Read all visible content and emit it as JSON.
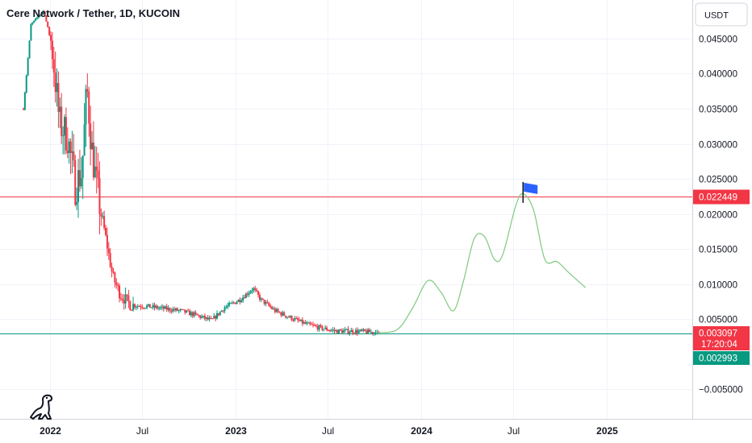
{
  "chart_data": {
    "type": "candlestick",
    "title": "Cere Network / Tether, 1D, KUCOIN",
    "currency_button": "USDT",
    "y_axis": {
      "ticks": [
        {
          "value": 0.045,
          "label": "0.045000"
        },
        {
          "value": 0.04,
          "label": "0.040000"
        },
        {
          "value": 0.035,
          "label": "0.035000"
        },
        {
          "value": 0.03,
          "label": "0.030000"
        },
        {
          "value": 0.025,
          "label": "0.025000"
        },
        {
          "value": 0.02,
          "label": "0.020000"
        },
        {
          "value": 0.015,
          "label": "0.015000"
        },
        {
          "value": 0.01,
          "label": "0.010000"
        },
        {
          "value": 0.005,
          "label": "0.005000"
        },
        {
          "value": -0.005,
          "label": "−0.005000"
        }
      ],
      "range": [
        -0.0092,
        0.0505
      ]
    },
    "x_axis": {
      "ticks": [
        {
          "date": "2022-01-01",
          "label": "2022",
          "bold": true
        },
        {
          "date": "2022-07-01",
          "label": "Jul",
          "bold": false
        },
        {
          "date": "2023-01-01",
          "label": "2023",
          "bold": true
        },
        {
          "date": "2023-07-01",
          "label": "Jul",
          "bold": false
        },
        {
          "date": "2024-01-01",
          "label": "2024",
          "bold": true
        },
        {
          "date": "2024-07-01",
          "label": "Jul",
          "bold": false
        },
        {
          "date": "2025-01-01",
          "label": "2025",
          "bold": true
        }
      ],
      "range": [
        "2021-09-25",
        "2025-06-18"
      ]
    },
    "price_path": [
      {
        "date": "2021-11-10",
        "value": 0.035
      },
      {
        "date": "2021-11-25",
        "value": 0.047
      },
      {
        "date": "2021-12-20",
        "value": 0.049
      },
      {
        "date": "2022-01-05",
        "value": 0.044
      },
      {
        "date": "2022-01-20",
        "value": 0.033
      },
      {
        "date": "2022-02-05",
        "value": 0.031
      },
      {
        "date": "2022-02-20",
        "value": 0.024
      },
      {
        "date": "2022-03-05",
        "value": 0.026
      },
      {
        "date": "2022-03-15",
        "value": 0.038
      },
      {
        "date": "2022-03-25",
        "value": 0.029
      },
      {
        "date": "2022-04-05",
        "value": 0.023
      },
      {
        "date": "2022-04-20",
        "value": 0.017
      },
      {
        "date": "2022-05-05",
        "value": 0.011
      },
      {
        "date": "2022-05-20",
        "value": 0.0085
      },
      {
        "date": "2022-06-10",
        "value": 0.007
      },
      {
        "date": "2022-07-15",
        "value": 0.0068
      },
      {
        "date": "2022-08-15",
        "value": 0.0065
      },
      {
        "date": "2022-09-15",
        "value": 0.0062
      },
      {
        "date": "2022-10-15",
        "value": 0.0056
      },
      {
        "date": "2022-11-15",
        "value": 0.0048
      },
      {
        "date": "2022-12-10",
        "value": 0.0066
      },
      {
        "date": "2023-01-10",
        "value": 0.0078
      },
      {
        "date": "2023-02-05",
        "value": 0.0094
      },
      {
        "date": "2023-02-20",
        "value": 0.0078
      },
      {
        "date": "2023-03-20",
        "value": 0.0062
      },
      {
        "date": "2023-04-20",
        "value": 0.0052
      },
      {
        "date": "2023-05-20",
        "value": 0.0043
      },
      {
        "date": "2023-06-20",
        "value": 0.0037
      },
      {
        "date": "2023-07-20",
        "value": 0.0033
      },
      {
        "date": "2023-08-20",
        "value": 0.0033
      },
      {
        "date": "2023-09-15",
        "value": 0.0032
      },
      {
        "date": "2023-10-10",
        "value": 0.0031
      }
    ],
    "price_volatility": [
      {
        "from": "2022-01-01",
        "to": "2022-04-15",
        "amplitude": 0.0055
      },
      {
        "from": "2022-04-15",
        "to": "2022-06-15",
        "amplitude": 0.0018
      },
      {
        "from": "2022-06-15",
        "to": "2023-10-10",
        "amplitude": 0.0007
      }
    ],
    "projection": [
      {
        "date": "2023-10-05",
        "value": 0.0031
      },
      {
        "date": "2023-11-15",
        "value": 0.0035
      },
      {
        "date": "2023-12-15",
        "value": 0.0065
      },
      {
        "date": "2024-01-15",
        "value": 0.0105
      },
      {
        "date": "2024-02-10",
        "value": 0.0088
      },
      {
        "date": "2024-03-05",
        "value": 0.0062
      },
      {
        "date": "2024-03-25",
        "value": 0.0105
      },
      {
        "date": "2024-04-15",
        "value": 0.0165
      },
      {
        "date": "2024-05-05",
        "value": 0.0168
      },
      {
        "date": "2024-05-25",
        "value": 0.0135
      },
      {
        "date": "2024-06-10",
        "value": 0.0142
      },
      {
        "date": "2024-07-05",
        "value": 0.021
      },
      {
        "date": "2024-07-20",
        "value": 0.0229
      },
      {
        "date": "2024-08-10",
        "value": 0.0205
      },
      {
        "date": "2024-09-01",
        "value": 0.0135
      },
      {
        "date": "2024-09-25",
        "value": 0.0132
      },
      {
        "date": "2024-10-20",
        "value": 0.0115
      },
      {
        "date": "2024-11-20",
        "value": 0.0095
      }
    ],
    "horizontal_lines": [
      {
        "value": 0.022449,
        "color": "#f23645",
        "label": "0.022449"
      },
      {
        "value": 0.003,
        "color": "#089981",
        "label": ""
      }
    ],
    "price_badges": [
      {
        "value": 0.003097,
        "label": "0.003097",
        "sublabel": "17:20:04",
        "color": "#f23645"
      },
      {
        "value": 0.002993,
        "label": "0.002993",
        "sublabel": "",
        "color": "#089981"
      }
    ],
    "flag_marker": {
      "date": "2024-07-20",
      "value": 0.0225,
      "color": "#2962ff"
    },
    "colors": {
      "up": "#089981",
      "down": "#f23645",
      "projection": "#7fc97f",
      "grid": "#f0f3fa",
      "axis_text": "#131722"
    }
  }
}
